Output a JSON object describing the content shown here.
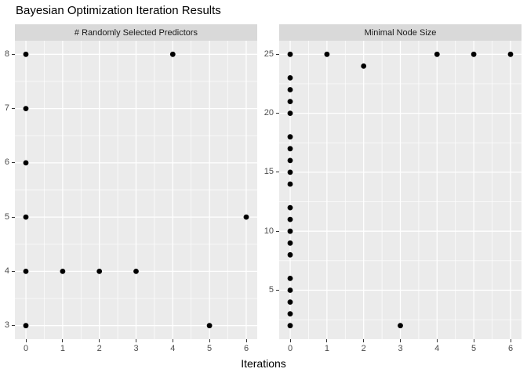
{
  "ui": {
    "title": "Bayesian Optimization Iteration Results",
    "x_axis_title": "Iterations"
  },
  "colors": {
    "panel_bg": "#EBEBEB",
    "strip_bg": "#D9D9D9",
    "grid_major": "#FFFFFF",
    "grid_minor": "#FFFFFF",
    "point": "#000000",
    "tick_label": "#4D4D4D",
    "tick_mark": "#333333",
    "title": "#000000"
  },
  "chart_data": [
    {
      "type": "scatter",
      "facet": "# Randomly Selected Predictors",
      "xlabel": "Iterations",
      "ylabel": "",
      "xlim": [
        -0.3,
        6.3
      ],
      "ylim": [
        2.75,
        8.25
      ],
      "x_ticks": [
        0,
        1,
        2,
        3,
        4,
        5,
        6
      ],
      "y_ticks": [
        3,
        4,
        5,
        6,
        7,
        8
      ],
      "x_minor": [
        0.5,
        1.5,
        2.5,
        3.5,
        4.5,
        5.5
      ],
      "y_minor": [
        3.5,
        4.5,
        5.5,
        6.5,
        7.5
      ],
      "grid": true,
      "points": [
        [
          0,
          3
        ],
        [
          0,
          4
        ],
        [
          0,
          5
        ],
        [
          0,
          6
        ],
        [
          0,
          7
        ],
        [
          0,
          8
        ],
        [
          1,
          4
        ],
        [
          2,
          4
        ],
        [
          3,
          4
        ],
        [
          4,
          8
        ],
        [
          5,
          3
        ],
        [
          6,
          5
        ]
      ]
    },
    {
      "type": "scatter",
      "facet": "Minimal Node Size",
      "xlabel": "Iterations",
      "ylabel": "",
      "xlim": [
        -0.3,
        6.3
      ],
      "ylim": [
        0.85,
        26.15
      ],
      "x_ticks": [
        0,
        1,
        2,
        3,
        4,
        5,
        6
      ],
      "y_ticks": [
        5,
        10,
        15,
        20,
        25
      ],
      "x_minor": [
        0.5,
        1.5,
        2.5,
        3.5,
        4.5,
        5.5
      ],
      "y_minor": [
        2.5,
        7.5,
        12.5,
        17.5,
        22.5
      ],
      "grid": true,
      "points": [
        [
          0,
          2
        ],
        [
          0,
          3
        ],
        [
          0,
          4
        ],
        [
          0,
          5
        ],
        [
          0,
          6
        ],
        [
          0,
          8
        ],
        [
          0,
          9
        ],
        [
          0,
          10
        ],
        [
          0,
          11
        ],
        [
          0,
          12
        ],
        [
          0,
          14
        ],
        [
          0,
          15
        ],
        [
          0,
          16
        ],
        [
          0,
          17
        ],
        [
          0,
          18
        ],
        [
          0,
          20
        ],
        [
          0,
          21
        ],
        [
          0,
          22
        ],
        [
          0,
          23
        ],
        [
          0,
          25
        ],
        [
          1,
          25
        ],
        [
          2,
          24
        ],
        [
          3,
          2
        ],
        [
          4,
          25
        ],
        [
          5,
          25
        ],
        [
          6,
          25
        ]
      ]
    }
  ]
}
